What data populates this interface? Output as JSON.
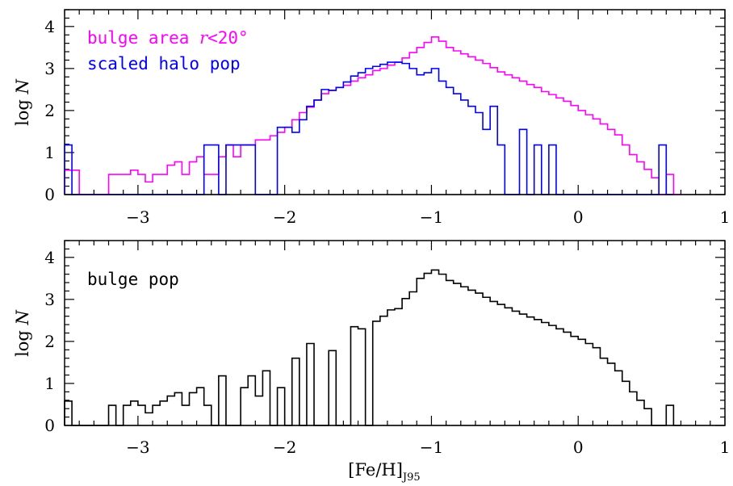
{
  "chart_data": [
    {
      "type": "histogram",
      "panel": "top",
      "ylabel": "log N",
      "xlim": [
        -3.5,
        1.0
      ],
      "ylim": [
        0,
        4.4
      ],
      "x_ticks": [
        "−3",
        "−2",
        "−1",
        "0",
        "1"
      ],
      "y_ticks": [
        "0",
        "1",
        "2",
        "3",
        "4"
      ],
      "bin_width": 0.1,
      "series": [
        {
          "name": "bulge area r<20°",
          "color": "#ff00ff",
          "values": [
            [
              -3.5,
              0.58
            ],
            [
              -3.4,
              0
            ],
            [
              -3.3,
              0
            ],
            [
              -3.2,
              0.48
            ],
            [
              -3.1,
              0.48
            ],
            [
              -3.05,
              0.58
            ],
            [
              -3.0,
              0.48
            ],
            [
              -2.95,
              0.3
            ],
            [
              -2.9,
              0.48
            ],
            [
              -2.85,
              0.48
            ],
            [
              -2.8,
              0.7
            ],
            [
              -2.75,
              0.78
            ],
            [
              -2.7,
              0.48
            ],
            [
              -2.65,
              0.78
            ],
            [
              -2.6,
              0.9
            ],
            [
              -2.55,
              0.48
            ],
            [
              -2.5,
              0.48
            ],
            [
              -2.45,
              0.9
            ],
            [
              -2.4,
              1.18
            ],
            [
              -2.35,
              0.9
            ],
            [
              -2.3,
              1.18
            ],
            [
              -2.25,
              1.18
            ],
            [
              -2.2,
              1.3
            ],
            [
              -2.15,
              1.3
            ],
            [
              -2.1,
              1.4
            ],
            [
              -2.05,
              1.48
            ],
            [
              -2.0,
              1.6
            ],
            [
              -1.95,
              1.78
            ],
            [
              -1.9,
              1.95
            ],
            [
              -1.85,
              2.08
            ],
            [
              -1.8,
              2.25
            ],
            [
              -1.75,
              2.4
            ],
            [
              -1.7,
              2.48
            ],
            [
              -1.65,
              2.55
            ],
            [
              -1.6,
              2.6
            ],
            [
              -1.55,
              2.7
            ],
            [
              -1.5,
              2.78
            ],
            [
              -1.45,
              2.85
            ],
            [
              -1.4,
              2.95
            ],
            [
              -1.35,
              3.0
            ],
            [
              -1.3,
              3.08
            ],
            [
              -1.25,
              3.15
            ],
            [
              -1.2,
              3.25
            ],
            [
              -1.15,
              3.38
            ],
            [
              -1.1,
              3.5
            ],
            [
              -1.05,
              3.62
            ],
            [
              -1.0,
              3.75
            ],
            [
              -0.95,
              3.65
            ],
            [
              -0.9,
              3.5
            ],
            [
              -0.85,
              3.42
            ],
            [
              -0.8,
              3.35
            ],
            [
              -0.75,
              3.28
            ],
            [
              -0.7,
              3.2
            ],
            [
              -0.65,
              3.12
            ],
            [
              -0.6,
              3.02
            ],
            [
              -0.55,
              2.92
            ],
            [
              -0.5,
              2.85
            ],
            [
              -0.45,
              2.78
            ],
            [
              -0.4,
              2.7
            ],
            [
              -0.35,
              2.62
            ],
            [
              -0.3,
              2.55
            ],
            [
              -0.25,
              2.45
            ],
            [
              -0.2,
              2.38
            ],
            [
              -0.15,
              2.3
            ],
            [
              -0.1,
              2.22
            ],
            [
              -0.05,
              2.12
            ],
            [
              0.0,
              2.0
            ],
            [
              0.05,
              1.9
            ],
            [
              0.1,
              1.8
            ],
            [
              0.15,
              1.68
            ],
            [
              0.2,
              1.55
            ],
            [
              0.25,
              1.42
            ],
            [
              0.3,
              1.18
            ],
            [
              0.35,
              0.95
            ],
            [
              0.4,
              0.78
            ],
            [
              0.45,
              0.6
            ],
            [
              0.5,
              0.4
            ],
            [
              0.55,
              0
            ],
            [
              0.6,
              0.48
            ],
            [
              0.65,
              0
            ]
          ]
        },
        {
          "name": "scaled halo pop",
          "color": "#0000ff",
          "values": [
            [
              -3.5,
              1.18
            ],
            [
              -3.45,
              0
            ],
            [
              -2.55,
              1.18
            ],
            [
              -2.45,
              0
            ],
            [
              -2.4,
              1.18
            ],
            [
              -2.2,
              0
            ],
            [
              -2.05,
              1.6
            ],
            [
              -1.95,
              1.48
            ],
            [
              -1.9,
              1.78
            ],
            [
              -1.85,
              2.1
            ],
            [
              -1.8,
              2.25
            ],
            [
              -1.75,
              2.5
            ],
            [
              -1.7,
              2.48
            ],
            [
              -1.65,
              2.55
            ],
            [
              -1.6,
              2.68
            ],
            [
              -1.55,
              2.82
            ],
            [
              -1.5,
              2.9
            ],
            [
              -1.45,
              3.0
            ],
            [
              -1.4,
              3.05
            ],
            [
              -1.35,
              3.1
            ],
            [
              -1.3,
              3.15
            ],
            [
              -1.25,
              3.15
            ],
            [
              -1.2,
              3.12
            ],
            [
              -1.15,
              3.0
            ],
            [
              -1.1,
              2.85
            ],
            [
              -1.05,
              2.9
            ],
            [
              -1.0,
              3.0
            ],
            [
              -0.95,
              2.7
            ],
            [
              -0.9,
              2.55
            ],
            [
              -0.85,
              2.4
            ],
            [
              -0.8,
              2.25
            ],
            [
              -0.75,
              2.1
            ],
            [
              -0.7,
              1.95
            ],
            [
              -0.65,
              1.55
            ],
            [
              -0.6,
              2.1
            ],
            [
              -0.55,
              1.18
            ],
            [
              -0.5,
              0
            ],
            [
              -0.4,
              1.55
            ],
            [
              -0.35,
              0
            ],
            [
              -0.3,
              1.18
            ],
            [
              -0.25,
              0
            ],
            [
              -0.2,
              1.18
            ],
            [
              -0.15,
              0
            ],
            [
              0.55,
              1.18
            ],
            [
              0.6,
              0
            ]
          ]
        }
      ],
      "legend": [
        {
          "text": "bulge area  ",
          "math": "r",
          "rest": "<20°",
          "color": "#ff00ff"
        },
        {
          "text": "scaled halo pop",
          "color": "#0000ff"
        }
      ]
    },
    {
      "type": "histogram",
      "panel": "bottom",
      "ylabel": "log N",
      "xlabel": "[Fe/H]",
      "xlabel_sub": "J95",
      "xlim": [
        -3.5,
        1.0
      ],
      "ylim": [
        0,
        4.4
      ],
      "x_ticks": [
        "−3",
        "−2",
        "−1",
        "0",
        "1"
      ],
      "y_ticks": [
        "0",
        "1",
        "2",
        "3",
        "4"
      ],
      "series": [
        {
          "name": "bulge pop",
          "color": "#000000",
          "values": [
            [
              -3.5,
              0.58
            ],
            [
              -3.45,
              0
            ],
            [
              -3.2,
              0.48
            ],
            [
              -3.15,
              0
            ],
            [
              -3.1,
              0.48
            ],
            [
              -3.05,
              0.58
            ],
            [
              -3.0,
              0.48
            ],
            [
              -2.95,
              0.3
            ],
            [
              -2.9,
              0.48
            ],
            [
              -2.85,
              0.58
            ],
            [
              -2.8,
              0.7
            ],
            [
              -2.75,
              0.78
            ],
            [
              -2.7,
              0.48
            ],
            [
              -2.65,
              0.78
            ],
            [
              -2.6,
              0.9
            ],
            [
              -2.55,
              0.48
            ],
            [
              -2.5,
              0
            ],
            [
              -2.45,
              1.18
            ],
            [
              -2.4,
              0
            ],
            [
              -2.3,
              0.9
            ],
            [
              -2.25,
              1.18
            ],
            [
              -2.2,
              0.7
            ],
            [
              -2.15,
              1.3
            ],
            [
              -2.1,
              0
            ],
            [
              -2.05,
              0.9
            ],
            [
              -2.0,
              0
            ],
            [
              -1.95,
              1.6
            ],
            [
              -1.9,
              0
            ],
            [
              -1.85,
              1.95
            ],
            [
              -1.8,
              0
            ],
            [
              -1.7,
              1.78
            ],
            [
              -1.65,
              0
            ],
            [
              -1.55,
              2.35
            ],
            [
              -1.5,
              2.3
            ],
            [
              -1.45,
              0
            ],
            [
              -1.4,
              2.48
            ],
            [
              -1.35,
              2.6
            ],
            [
              -1.3,
              2.75
            ],
            [
              -1.25,
              2.78
            ],
            [
              -1.2,
              3.02
            ],
            [
              -1.15,
              3.18
            ],
            [
              -1.1,
              3.5
            ],
            [
              -1.05,
              3.62
            ],
            [
              -1.0,
              3.7
            ],
            [
              -0.95,
              3.6
            ],
            [
              -0.9,
              3.45
            ],
            [
              -0.85,
              3.38
            ],
            [
              -0.8,
              3.3
            ],
            [
              -0.75,
              3.22
            ],
            [
              -0.7,
              3.15
            ],
            [
              -0.65,
              3.05
            ],
            [
              -0.6,
              2.95
            ],
            [
              -0.55,
              2.88
            ],
            [
              -0.5,
              2.8
            ],
            [
              -0.45,
              2.72
            ],
            [
              -0.4,
              2.65
            ],
            [
              -0.35,
              2.58
            ],
            [
              -0.3,
              2.52
            ],
            [
              -0.25,
              2.45
            ],
            [
              -0.2,
              2.38
            ],
            [
              -0.15,
              2.3
            ],
            [
              -0.1,
              2.22
            ],
            [
              -0.05,
              2.12
            ],
            [
              0.0,
              2.05
            ],
            [
              0.05,
              1.95
            ],
            [
              0.1,
              1.85
            ],
            [
              0.15,
              1.6
            ],
            [
              0.2,
              1.48
            ],
            [
              0.25,
              1.3
            ],
            [
              0.3,
              1.05
            ],
            [
              0.35,
              0.8
            ],
            [
              0.4,
              0.6
            ],
            [
              0.45,
              0.4
            ],
            [
              0.5,
              0
            ],
            [
              0.6,
              0.48
            ],
            [
              0.65,
              0
            ]
          ]
        }
      ],
      "legend": [
        {
          "text": "bulge pop",
          "color": "#000000"
        }
      ]
    }
  ]
}
